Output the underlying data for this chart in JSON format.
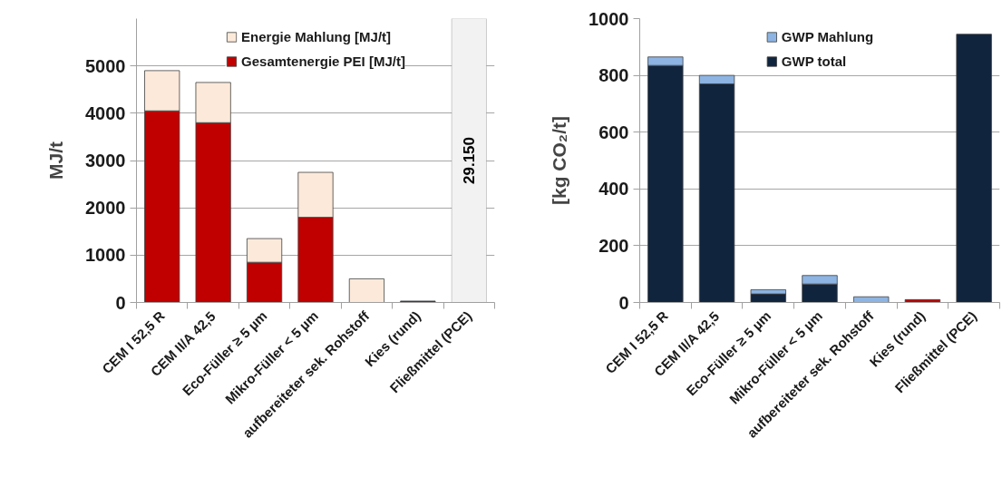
{
  "chart_data": [
    {
      "type": "bar",
      "stacked": true,
      "ylabel": "MJ/t",
      "categories": [
        "CEM I 52,5 R",
        "CEM II/A 42,5",
        "Eco-Füller ≥ 5 µm",
        "Mikro-Füller < 5 µm",
        "aufbereiteter sek. Rohstoff",
        "Kies (rund)",
        "Fließmittel (PCE)"
      ],
      "series": [
        {
          "name": "Gesamtenergie PEI [MJ/t]",
          "color": "#c00000",
          "values": [
            4050,
            3800,
            850,
            1800,
            null,
            30,
            null
          ]
        },
        {
          "name": "Energie Mahlung [MJ/t]",
          "color": "#fde9d9",
          "values": [
            850,
            850,
            500,
            950,
            500,
            null,
            null
          ]
        }
      ],
      "bands": [
        {
          "axis": "x",
          "from": "Fließmittel (PCE)",
          "to": "Fließmittel (PCE)",
          "label": "29.150",
          "color": "#f2f2f2"
        }
      ],
      "ylim": [
        0,
        6000
      ],
      "yticks": [
        0,
        1000,
        2000,
        3000,
        4000,
        5000
      ],
      "grid": "y",
      "legend": "top"
    },
    {
      "type": "bar",
      "stacked": true,
      "ylabel": "[kg CO₂/t]",
      "categories": [
        "CEM I 52,5 R",
        "CEM II/A 42,5",
        "Eco-Füller ≥ 5 µm",
        "Mikro-Füller < 5 µm",
        "aufbereiteter sek. Rohstoff",
        "Kies (rund)",
        "Fließmittel (PCE)"
      ],
      "series": [
        {
          "name": "GWP total",
          "color": "#10243e",
          "colors": [
            "#10243e",
            "#10243e",
            "#10243e",
            "#10243e",
            "#10243e",
            "#c00000",
            "#10243e"
          ],
          "values": [
            835,
            770,
            30,
            65,
            null,
            10,
            945
          ]
        },
        {
          "name": "GWP Mahlung",
          "color": "#8db4e2",
          "values": [
            30,
            30,
            15,
            30,
            20,
            null,
            null
          ]
        }
      ],
      "ylim": [
        0,
        1000
      ],
      "yticks": [
        0,
        200,
        400,
        600,
        800,
        1000
      ],
      "grid": "y",
      "legend": "top"
    }
  ]
}
